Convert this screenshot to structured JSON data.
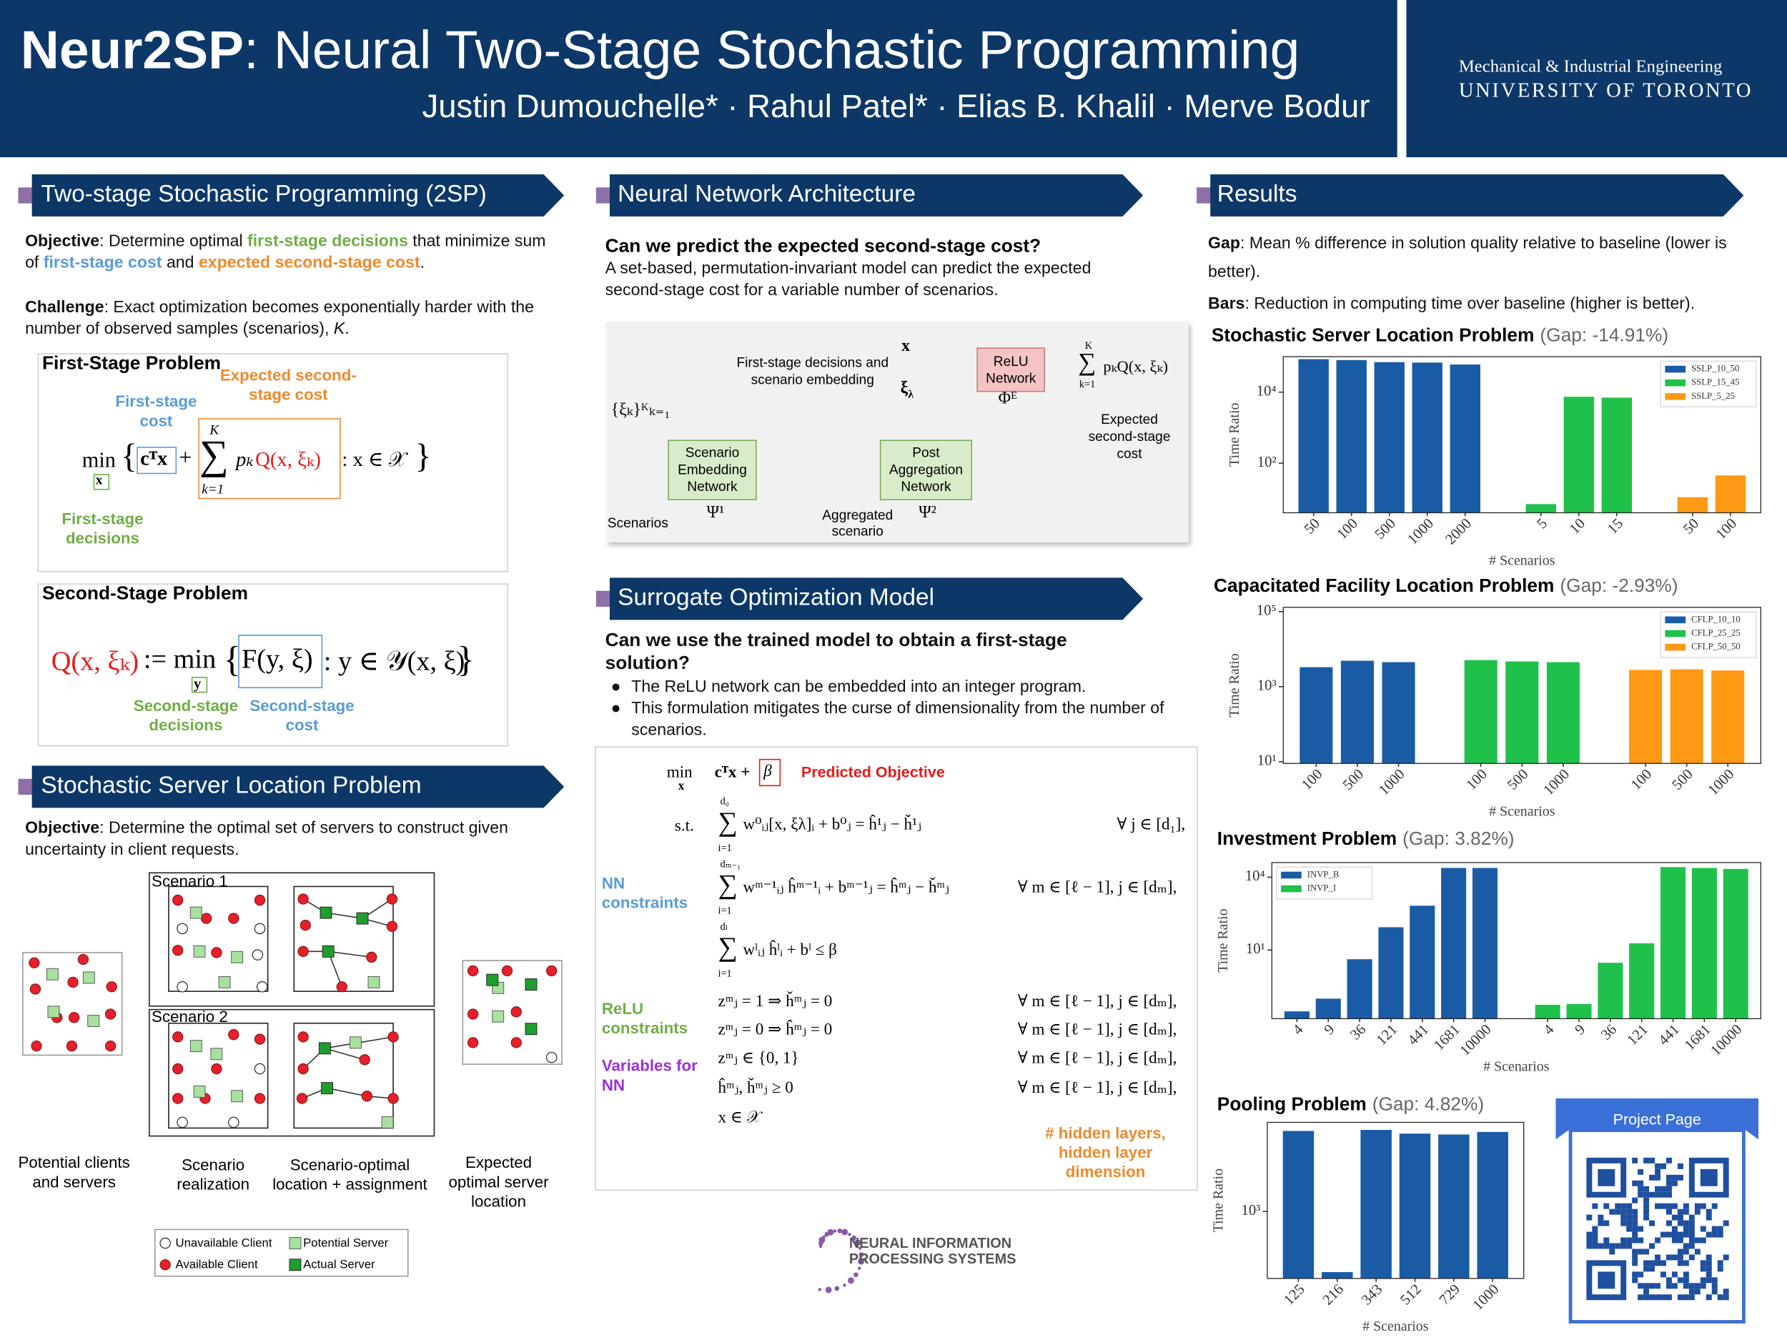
{
  "header": {
    "title_bold": "Neur2SP",
    "title_rest": ": Neural Two-Stage Stochastic Programming",
    "authors": "Justin Dumouchelle* · Rahul Patel* · Elias B. Khalil · Merve Bodur",
    "dept": "Mechanical & Industrial Engineering",
    "university": "UNIVERSITY OF TORONTO"
  },
  "two_stage_sp": {
    "heading": "Two-stage Stochastic Programming (2SP)",
    "objective": [
      "Objective",
      ": Determine optimal ",
      "first-stage decisions",
      " that minimize sum of ",
      "first-stage cost",
      " and ",
      "expected second-stage cost",
      "."
    ],
    "challenge": [
      "Challenge",
      ": Exact optimization becomes exponentially harder with the number of observed samples (scenarios), ",
      "K",
      "."
    ],
    "first_stage": {
      "title": "First-Stage Problem",
      "cost_label": "First-stage cost",
      "expected_cost_label": "Expected second-stage cost",
      "decisions_label": "First-stage decisions",
      "formula": [
        "min",
        "x",
        "{",
        "cᵀx",
        "+",
        "∑",
        "K",
        "k=1",
        "pₖ",
        "Q(x, ξₖ)",
        ": x ∈ 𝒳",
        "}"
      ]
    },
    "second_stage": {
      "title": "Second-Stage Problem",
      "formula": [
        "Q(x, ξₖ)",
        ":= min",
        "y",
        "{",
        "F(y, ξ)",
        ": y ∈ 𝒴(x, ξ)",
        "}"
      ],
      "decisions_label": "Second-stage decisions",
      "cost_label": "Second-stage cost"
    }
  },
  "sslp": {
    "heading": "Stochastic Server Location Problem",
    "objective": [
      "Objective",
      ": Determine the optimal set of servers to construct given uncertainty in client requests."
    ],
    "scenario_1": "Scenario 1",
    "scenario_2": "Scenario 2",
    "captions": [
      "Potential clients and servers",
      "Scenario realization",
      "Scenario-optimal location + assignment",
      "Expected optimal server location"
    ],
    "legend": [
      "Unavailable Client",
      "Available Client",
      "Potential Server",
      "Actual Server"
    ]
  },
  "architecture": {
    "heading": "Neural Network Architecture",
    "question": "Can we predict the expected second-stage cost?",
    "text": "A set-based, permutation-invariant model can predict the expected second-stage cost for a variable number of scenarios.",
    "figure": {
      "scenario_set": "{ξₖ}ᴷₖ₌₁",
      "scenarios": "Scenarios",
      "embedding_network": "Scenario Embedding Network",
      "psi1": "Ψ¹",
      "aggregated": "Aggregated scenario",
      "post_network": "Post Aggregation Network",
      "psi2": "Ψ²",
      "x": "x",
      "xi_lambda": [
        "ξ",
        "λ"
      ],
      "embedding_label": "First-stage decisions and scenario embedding",
      "relu": "ReLU Network",
      "phi": "Φᴱ",
      "output": [
        "∑",
        "K",
        "k=1",
        "pₖQ(x, ξₖ)"
      ],
      "output_label": "Expected second-stage cost"
    }
  },
  "surrogate": {
    "heading": "Surrogate Optimization Model",
    "question": "Can we use the trained model to obtain a first-stage solution?",
    "bullets": [
      "The ReLU network can be embedded into an integer program.",
      "This formulation mitigates the curse of dimensionality from the number of scenarios."
    ],
    "model": {
      "min": "min",
      "min_var": "x",
      "objective": "cᵀx +",
      "beta": "β",
      "predicted": "Predicted Objective",
      "st": "s.t.",
      "rows": [
        {
          "sum": "∑",
          "upper": "d₀",
          "lower": "i=1",
          "lhs": "w⁰ᵢⱼ[x, ξλ]ᵢ + b⁰ⱼ = ĥ¹ⱼ − ȟ¹ⱼ",
          "domain": "∀ j ∈ [d₁],"
        },
        {
          "sum": "∑",
          "upper": "dₘ₋₁",
          "lower": "i=1",
          "lhs": "wᵐ⁻¹ᵢⱼ ĥᵐ⁻¹ᵢ + bᵐ⁻¹ⱼ = ĥᵐⱼ − ȟᵐⱼ",
          "domain": "∀ m ∈ [ℓ − 1], j ∈ [dₘ],"
        },
        {
          "sum": "∑",
          "upper": "dₗ",
          "lower": "i=1",
          "lhs": "wˡᵢⱼ ĥˡᵢ + bˡ ≤ β"
        },
        {
          "lhs": "zᵐⱼ = 1 ⇒ ȟᵐⱼ = 0",
          "domain": "∀ m ∈ [ℓ − 1], j ∈ [dₘ],"
        },
        {
          "lhs": "zᵐⱼ = 0 ⇒ ĥᵐⱼ = 0",
          "domain": "∀ m ∈ [ℓ − 1], j ∈ [dₘ],"
        },
        {
          "lhs": "zᵐⱼ ∈ {0, 1}",
          "domain": "∀ m ∈ [ℓ − 1], j ∈ [dₘ],"
        },
        {
          "lhs": "ĥᵐⱼ, ȟᵐⱼ ≥ 0",
          "domain": "∀ m ∈ [ℓ − 1], j ∈ [dₘ],"
        },
        {
          "lhs": "x ∈ 𝒳"
        }
      ],
      "nn_label": "NN constraints",
      "relu_label": "ReLU constraints",
      "vars_label": "Variables for NN",
      "hidden_label": "# hidden layers, hidden layer dimension"
    }
  },
  "results": {
    "heading": "Results",
    "gap": [
      "Gap",
      ": Mean % difference in solution quality relative to baseline (lower is better)."
    ],
    "bars": [
      "Bars",
      ": Reduction in computing time over baseline (higher is better)."
    ]
  },
  "project_page": "Project Page",
  "neurips": [
    "NEURAL INFORMATION",
    "PROCESSING SYSTEMS"
  ],
  "chart_data": [
    {
      "type": "bar",
      "title": "Stochastic Server Location Problem",
      "subtitle": "(Gap: -14.91%)",
      "y_label": "Time Ratio",
      "x_label": "# Scenarios",
      "log_scale": true,
      "ylim": [
        4,
        100000
      ],
      "yticks": [
        {
          "value": 100,
          "label": "10²"
        },
        {
          "value": 10000,
          "label": "10⁴"
        }
      ],
      "legend": "upper right",
      "series": [
        {
          "name": "SSLP_10_50",
          "color": "#1a5ba6",
          "categories": [
            "50",
            "100",
            "500",
            "1000",
            "2000"
          ],
          "values": [
            85000,
            80000,
            70000,
            68000,
            60000
          ]
        },
        {
          "name": "SSLP_15_45",
          "color": "#1fc14a",
          "categories": [
            "5",
            "10",
            "15"
          ],
          "values": [
            7,
            7400,
            7000
          ]
        },
        {
          "name": "SSLP_5_25",
          "color": "#ff9914",
          "categories": [
            "50",
            "100"
          ],
          "values": [
            11,
            45
          ]
        }
      ]
    },
    {
      "type": "bar",
      "title": "Capacitated Facility Location Problem",
      "subtitle": "(Gap: -2.93%)",
      "y_label": "Time Ratio",
      "x_label": "# Scenarios",
      "log_scale": true,
      "ylim": [
        9,
        130000
      ],
      "yticks": [
        {
          "value": 10,
          "label": "10¹"
        },
        {
          "value": 1000,
          "label": "10³"
        },
        {
          "value": 100000,
          "label": "10⁵"
        }
      ],
      "legend": "upper right",
      "series": [
        {
          "name": "CFLP_10_10",
          "color": "#1a5ba6",
          "categories": [
            "100",
            "500",
            "1000"
          ],
          "values": [
            3300,
            4900,
            4500
          ]
        },
        {
          "name": "CFLP_25_25",
          "color": "#1fc14a",
          "categories": [
            "100",
            "500",
            "1000"
          ],
          "values": [
            5100,
            4700,
            4500
          ]
        },
        {
          "name": "CFLP_50_50",
          "color": "#ff9914",
          "categories": [
            "100",
            "500",
            "1000"
          ],
          "values": [
            2800,
            2900,
            2700
          ]
        }
      ]
    },
    {
      "type": "bar",
      "title": "Investment Problem",
      "subtitle": "(Gap: 3.82%)",
      "y_label": "Time Ratio",
      "x_label": "# Scenarios",
      "log_scale": true,
      "ylim": [
        0.015,
        40000
      ],
      "yticks": [
        {
          "value": 10,
          "label": "10¹"
        },
        {
          "value": 10000,
          "label": "10⁴"
        }
      ],
      "legend": "upper left",
      "series": [
        {
          "name": "INVP_B",
          "color": "#1a5ba6",
          "categories": [
            "4",
            "9",
            "36",
            "121",
            "441",
            "1681",
            "10000"
          ],
          "values": [
            0.03,
            0.1,
            4.2,
            87,
            670,
            24000,
            24000
          ]
        },
        {
          "name": "INVP_I",
          "color": "#1fc14a",
          "categories": [
            "4",
            "9",
            "36",
            "121",
            "441",
            "1681",
            "10000"
          ],
          "values": [
            0.056,
            0.06,
            3,
            19,
            26000,
            24000,
            22000
          ]
        }
      ]
    },
    {
      "type": "bar",
      "title": "Pooling Problem",
      "subtitle": "(Gap: 4.82%)",
      "y_label": "Time Ratio",
      "x_label": "# Scenarios",
      "log_scale": true,
      "ylim": [
        105,
        20000
      ],
      "yticks": [
        {
          "value": 1000,
          "label": "10³"
        }
      ],
      "color": "#1a5ba6",
      "categories": [
        "125",
        "216",
        "343",
        "512",
        "729",
        "1000"
      ],
      "values": [
        15000,
        130,
        15500,
        13700,
        13300,
        14500
      ]
    }
  ]
}
